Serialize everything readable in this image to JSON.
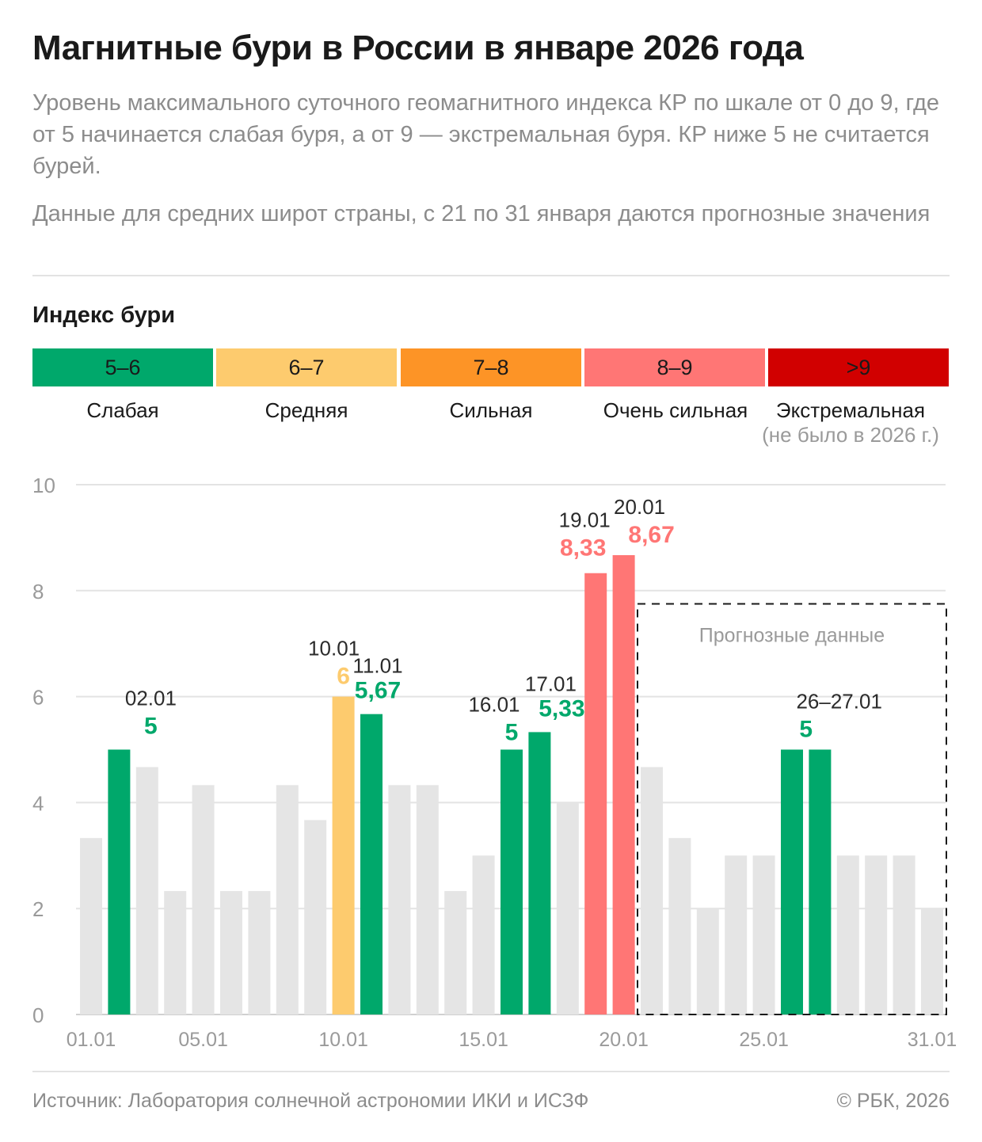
{
  "header": {
    "title": "Магнитные бури в России в январе 2026 года",
    "subtitle": "Уровень максимального суточного геомагнитного индекса КР по шкале от 0 до 9, где от 5 начинается слабая буря, а от 9 — экстремальная буря. КР ниже 5 не считается бурей.",
    "note": "Данные для средних широт страны, с 21 по 31 января даются прогнозные значения"
  },
  "legend": {
    "title": "Индекс бури",
    "items": [
      {
        "range": "5–6",
        "label": "Слабая",
        "sublabel": "",
        "color": "#00a86b",
        "text_color": "#1a1a1a"
      },
      {
        "range": "6–7",
        "label": "Средняя",
        "sublabel": "",
        "color": "#fdcb6e",
        "text_color": "#1a1a1a"
      },
      {
        "range": "7–8",
        "label": "Сильная",
        "sublabel": "",
        "color": "#fd9426",
        "text_color": "#1a1a1a"
      },
      {
        "range": "8–9",
        "label": "Очень сильная",
        "sublabel": "",
        "color": "#ff7675",
        "text_color": "#1a1a1a"
      },
      {
        "range": ">9",
        "label": "Экстремальная",
        "sublabel": "(не было в 2026 г.)",
        "color": "#d10000",
        "text_color": "#1a1a1a"
      }
    ]
  },
  "chart_data": {
    "type": "bar",
    "ylim": [
      0,
      10
    ],
    "yticks": [
      0,
      2,
      4,
      6,
      8,
      10
    ],
    "grid": true,
    "categories": [
      "01.01",
      "02.01",
      "03.01",
      "04.01",
      "05.01",
      "06.01",
      "07.01",
      "08.01",
      "09.01",
      "10.01",
      "11.01",
      "12.01",
      "13.01",
      "14.01",
      "15.01",
      "16.01",
      "17.01",
      "18.01",
      "19.01",
      "20.01",
      "21.01",
      "22.01",
      "23.01",
      "24.01",
      "25.01",
      "26.01",
      "27.01",
      "28.01",
      "29.01",
      "30.01",
      "31.01"
    ],
    "values": [
      3.33,
      5,
      4.67,
      2.33,
      4.33,
      2.33,
      2.33,
      4.33,
      3.67,
      6,
      5.67,
      4.33,
      4.33,
      2.33,
      3,
      5,
      5.33,
      4,
      8.33,
      8.67,
      4.67,
      3.33,
      2,
      3,
      3,
      5,
      5,
      3,
      3,
      3,
      2
    ],
    "colors": [
      "#e5e5e5",
      "#00a86b",
      "#e5e5e5",
      "#e5e5e5",
      "#e5e5e5",
      "#e5e5e5",
      "#e5e5e5",
      "#e5e5e5",
      "#e5e5e5",
      "#fdcb6e",
      "#00a86b",
      "#e5e5e5",
      "#e5e5e5",
      "#e5e5e5",
      "#e5e5e5",
      "#00a86b",
      "#00a86b",
      "#e5e5e5",
      "#ff7675",
      "#ff7675",
      "#e5e5e5",
      "#e5e5e5",
      "#e5e5e5",
      "#e5e5e5",
      "#e5e5e5",
      "#00a86b",
      "#00a86b",
      "#e5e5e5",
      "#e5e5e5",
      "#e5e5e5",
      "#e5e5e5"
    ],
    "xtick_labels": [
      {
        "index": 0,
        "label": "01.01"
      },
      {
        "index": 4,
        "label": "05.01"
      },
      {
        "index": 9,
        "label": "10.01"
      },
      {
        "index": 14,
        "label": "15.01"
      },
      {
        "index": 19,
        "label": "20.01"
      },
      {
        "index": 24,
        "label": "25.01"
      },
      {
        "index": 30,
        "label": "31.01"
      }
    ],
    "annotations": [
      {
        "index": 1,
        "date": "02.01",
        "value": "5",
        "color": "#00a86b"
      },
      {
        "index": 9,
        "date": "10.01",
        "value": "6",
        "color": "#fdcb6e"
      },
      {
        "index": 10,
        "date": "11.01",
        "value": "5,67",
        "color": "#00a86b"
      },
      {
        "index": 15,
        "date": "16.01",
        "value": "5",
        "color": "#00a86b"
      },
      {
        "index": 16,
        "date": "17.01",
        "value": "5,33",
        "color": "#00a86b"
      },
      {
        "index": 18,
        "date": "19.01",
        "value": "8,33",
        "color": "#ff7675"
      },
      {
        "index": 19,
        "date": "20.01",
        "value": "8,67",
        "color": "#ff7675"
      },
      {
        "index": 25.5,
        "date": "26–27.01",
        "value": "5",
        "color": "#00a86b"
      }
    ],
    "forecast": {
      "from_index": 20,
      "to_index": 30,
      "top_value": 7.75,
      "label": "Прогнозные данные"
    }
  },
  "footer": {
    "source": "Источник: Лаборатория солнечной астрономии ИКИ и ИСЗФ",
    "copyright": "© РБК, 2026"
  }
}
